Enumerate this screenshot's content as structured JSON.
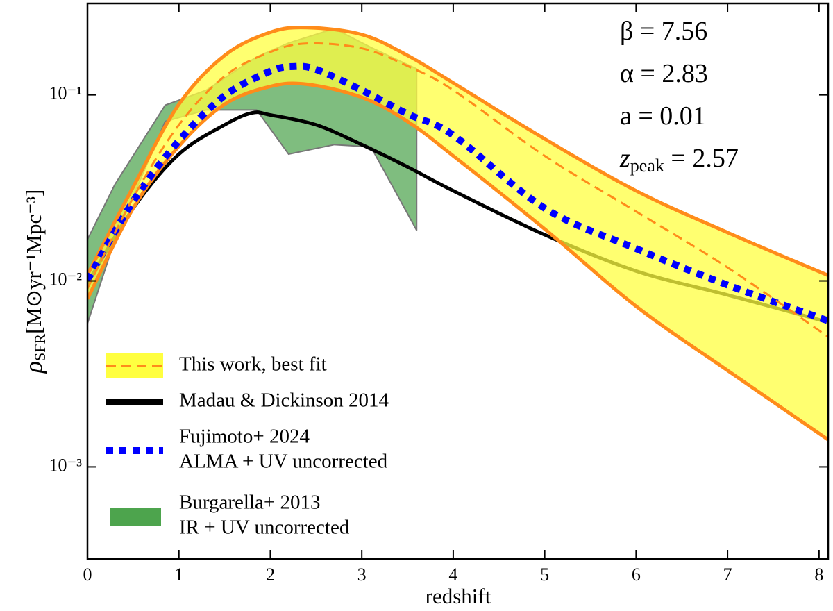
{
  "chart_data": {
    "type": "line",
    "xlabel": "redshift",
    "ylabel": {
      "symbol": "ρ",
      "sub": "SFR",
      "rest": "[M⊙yr⁻¹Mpc⁻³]"
    },
    "annotations": [
      {
        "text": "β = 7.56"
      },
      {
        "text": "α = 2.83"
      },
      {
        "text": "a = 0.01"
      },
      {
        "text": "z",
        "sub": "peak",
        "rest": " = 2.57"
      }
    ],
    "xlim": [
      0,
      8.1
    ],
    "xticks": [
      0,
      1,
      2,
      3,
      4,
      5,
      6,
      7,
      8
    ],
    "ylim": [
      0.00032,
      0.31
    ],
    "yscale": "log",
    "yticks": [
      {
        "value": 0.1,
        "label": "10⁻¹"
      },
      {
        "value": 0.01,
        "label": "10⁻²"
      },
      {
        "value": 0.001,
        "label": "10⁻³"
      }
    ],
    "legend": "lower left",
    "series": [
      {
        "name": "This work, best fit",
        "style": "dashed",
        "color": "#ff8c1a",
        "fill": "#ffff40",
        "x": [
          0,
          0.5,
          1,
          1.5,
          2,
          2.4,
          3,
          3.5,
          4,
          5,
          6,
          7,
          8.1
        ],
        "values": [
          0.0091,
          0.028,
          0.069,
          0.126,
          0.17,
          0.189,
          0.178,
          0.143,
          0.106,
          0.047,
          0.0236,
          0.0118,
          0.005
        ],
        "upper": [
          0.0108,
          0.032,
          0.089,
          0.163,
          0.217,
          0.23,
          0.211,
          0.163,
          0.116,
          0.058,
          0.0305,
          0.0182,
          0.0107
        ],
        "lower": [
          0.008,
          0.0246,
          0.053,
          0.089,
          0.111,
          0.114,
          0.097,
          0.072,
          0.047,
          0.019,
          0.0073,
          0.0033,
          0.0014
        ]
      },
      {
        "name": "Madau & Dickinson 2014",
        "style": "solid",
        "color": "#000000",
        "x": [
          0,
          0.5,
          1,
          1.5,
          1.8,
          2,
          2.5,
          3,
          3.5,
          4,
          5,
          6,
          7,
          8.1
        ],
        "values": [
          0.0097,
          0.0246,
          0.048,
          0.069,
          0.08,
          0.078,
          0.069,
          0.054,
          0.041,
          0.0305,
          0.0177,
          0.0113,
          0.0084,
          0.006
        ]
      },
      {
        "name": "Fujimoto+ 2024",
        "note": "ALMA + UV uncorrected",
        "style": "dotted",
        "color": "#0000ff",
        "x": [
          0,
          0.5,
          1,
          1.5,
          2,
          2.25,
          2.5,
          3,
          3.5,
          4,
          5,
          6,
          7,
          8.1
        ],
        "values": [
          0.0101,
          0.0268,
          0.0567,
          0.099,
          0.134,
          0.142,
          0.137,
          0.106,
          0.079,
          0.0607,
          0.0246,
          0.0149,
          0.0095,
          0.0061
        ]
      },
      {
        "name": "Burgarella+ 2013",
        "note": "IR + UV uncorrected",
        "style": "area",
        "color": "#3a9a3a",
        "x": [
          0,
          0.3,
          0.85,
          1.3,
          1.85,
          2.2,
          2.7,
          3.1,
          3.6
        ],
        "upper": [
          0.0167,
          0.033,
          0.088,
          0.106,
          0.16,
          0.19,
          0.227,
          0.18,
          0.138
        ],
        "lower": [
          0.0059,
          0.0167,
          0.072,
          0.083,
          0.083,
          0.048,
          0.054,
          0.0525,
          0.0187
        ]
      }
    ]
  }
}
